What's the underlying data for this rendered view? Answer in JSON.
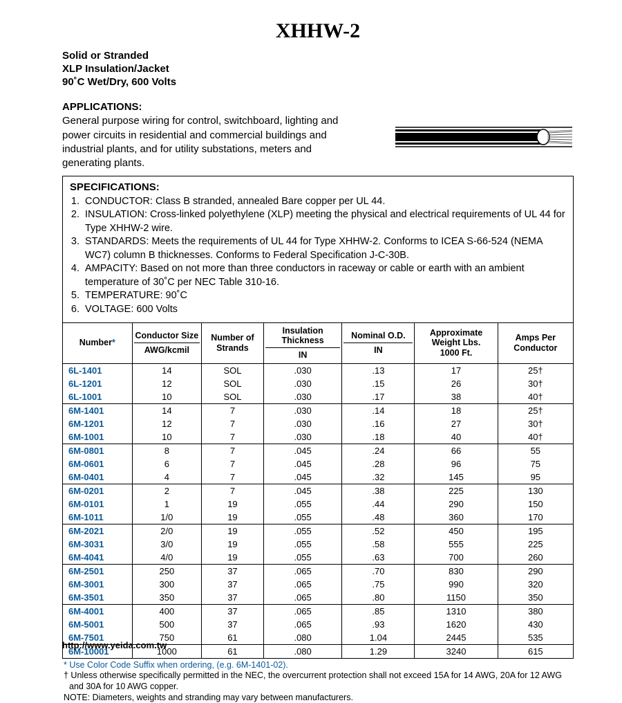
{
  "title": "XHHW-2",
  "subtitle_lines": [
    "Solid or Stranded",
    "XLP Insulation/Jacket",
    "90˚C Wet/Dry, 600 Volts"
  ],
  "applications_heading": "APPLICATIONS:",
  "applications_body": "General purpose wiring for control, switchboard, lighting and power circuits in residential and commercial buildings and industrial plants, and for utility substations, meters and generating plants.",
  "spec_heading": "SPECIFICATIONS:",
  "spec_items": [
    "CONDUCTOR: Class B stranded, annealed Bare copper per UL 44.",
    "INSULATION: Cross-linked polyethylene (XLP) meeting the physical and electrical requirements of UL 44 for Type XHHW-2 wire.",
    "STANDARDS: Meets the requirements of UL 44 for Type XHHW-2. Conforms to ICEA S-66-524 (NEMA WC7) column B thicknesses. Conforms to Federal Specification J-C-30B.",
    "AMPACITY: Based on not more than three conductors in raceway or cable or earth with an ambient temperature of 30˚C per NEC Table 310-16.",
    "TEMPERATURE: 90˚C",
    "VOLTAGE: 600 Volts"
  ],
  "columns": {
    "number_top": "",
    "number_bot": "Number",
    "cond_top": "Conductor Size",
    "cond_bot": "AWG/kcmil",
    "strands_top": "Number of",
    "strands_bot": "Strands",
    "ins_top": "Insulation Thickness",
    "ins_bot": "IN",
    "od_top": "Nominal O.D.",
    "od_bot": "IN",
    "wt_top": "Approximate Weight Lbs.",
    "wt_bot": "1000 Ft.",
    "amps_top": "Amps Per",
    "amps_bot": "Conductor"
  },
  "groups": [
    [
      [
        "6L-1401",
        "14",
        "SOL",
        ".030",
        ".13",
        "17",
        "25†"
      ],
      [
        "6L-1201",
        "12",
        "SOL",
        ".030",
        ".15",
        "26",
        "30†"
      ],
      [
        "6L-1001",
        "10",
        "SOL",
        ".030",
        ".17",
        "38",
        "40†"
      ]
    ],
    [
      [
        "6M-1401",
        "14",
        "7",
        ".030",
        ".14",
        "18",
        "25†"
      ],
      [
        "6M-1201",
        "12",
        "7",
        ".030",
        ".16",
        "27",
        "30†"
      ],
      [
        "6M-1001",
        "10",
        "7",
        ".030",
        ".18",
        "40",
        "40†"
      ]
    ],
    [
      [
        "6M-0801",
        "8",
        "7",
        ".045",
        ".24",
        "66",
        "55"
      ],
      [
        "6M-0601",
        "6",
        "7",
        ".045",
        ".28",
        "96",
        "75"
      ],
      [
        "6M-0401",
        "4",
        "7",
        ".045",
        ".32",
        "145",
        "95"
      ]
    ],
    [
      [
        "6M-0201",
        "2",
        "7",
        ".045",
        ".38",
        "225",
        "130"
      ],
      [
        "6M-0101",
        "1",
        "19",
        ".055",
        ".44",
        "290",
        "150"
      ],
      [
        "6M-1011",
        "1/0",
        "19",
        ".055",
        ".48",
        "360",
        "170"
      ]
    ],
    [
      [
        "6M-2021",
        "2/0",
        "19",
        ".055",
        ".52",
        "450",
        "195"
      ],
      [
        "6M-3031",
        "3/0",
        "19",
        ".055",
        ".58",
        "555",
        "225"
      ],
      [
        "6M-4041",
        "4/0",
        "19",
        ".055",
        ".63",
        "700",
        "260"
      ]
    ],
    [
      [
        "6M-2501",
        "250",
        "37",
        ".065",
        ".70",
        "830",
        "290"
      ],
      [
        "6M-3001",
        "300",
        "37",
        ".065",
        ".75",
        "990",
        "320"
      ],
      [
        "6M-3501",
        "350",
        "37",
        ".065",
        ".80",
        "1150",
        "350"
      ]
    ],
    [
      [
        "6M-4001",
        "400",
        "37",
        ".065",
        ".85",
        "1310",
        "380"
      ],
      [
        "6M-5001",
        "500",
        "37",
        ".065",
        ".93",
        "1620",
        "430"
      ],
      [
        "6M-7501",
        "750",
        "61",
        ".080",
        "1.04",
        "2445",
        "535"
      ]
    ],
    [
      [
        "6M-10001",
        "1000",
        "61",
        ".080",
        "1.29",
        "3240",
        "615"
      ]
    ]
  ],
  "footnote_star": "* Use Color Code Suffix when ordering, (e.g. 6M-1401-02).",
  "footnote_dagger": "† Unless otherwise specifically permitted in the NEC, the overcurrent protection shall not exceed 15A for 14 AWG, 20A for 12 AWG and 30A for 10 AWG copper.",
  "footnote_note": "NOTE: Diameters, weights and stranding may vary between manufacturers.",
  "url": "http://www.yeida.com.tw",
  "cable_colors": {
    "jacket": "#000000",
    "inner": "#ffffff",
    "conductor": "#9a9a9a"
  },
  "link_color": "#0b5a9a"
}
